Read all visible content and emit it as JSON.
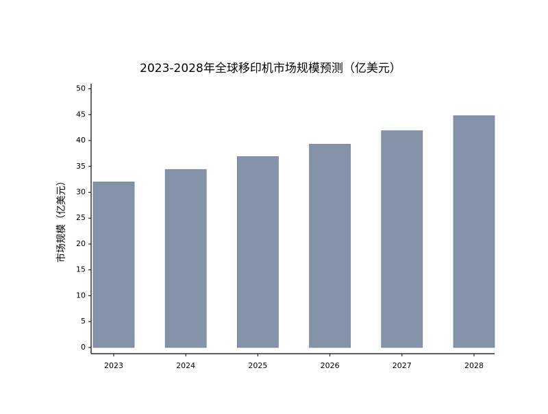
{
  "chart_data": {
    "type": "bar",
    "title": "2023-2028年全球移印机市场规模预测（亿美元）",
    "y_label": "市场规模（亿美元）",
    "categories": [
      "2023",
      "2024",
      "2025",
      "2026",
      "2027",
      "2028"
    ],
    "values": [
      32,
      34.4,
      36.9,
      39.3,
      41.9,
      44.8
    ],
    "color": "#8593a8",
    "ylim": [
      -1.2,
      51
    ],
    "yticks": [
      0,
      5,
      10,
      15,
      20,
      25,
      30,
      35,
      40,
      45,
      50
    ]
  }
}
